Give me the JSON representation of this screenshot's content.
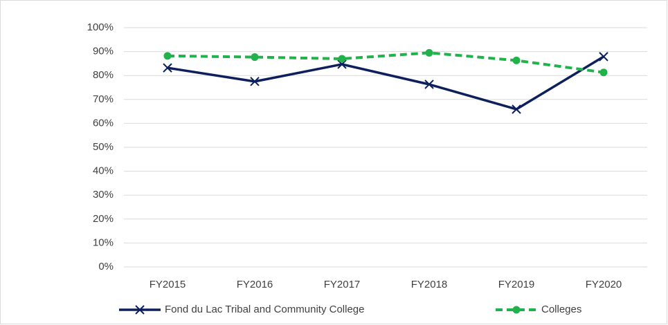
{
  "chart_data": {
    "type": "line",
    "categories": [
      "FY2015",
      "FY2016",
      "FY2017",
      "FY2018",
      "FY2019",
      "FY2020"
    ],
    "series": [
      {
        "name": "Fond du Lac Tribal and Community College",
        "color": "#0d1f5c",
        "marker": "x",
        "dash": false,
        "values": [
          83.2,
          77.5,
          84.7,
          76.3,
          65.9,
          87.9
        ]
      },
      {
        "name": "Colleges",
        "color": "#21b24b",
        "marker": "circle",
        "dash": true,
        "values": [
          88.2,
          87.7,
          87.0,
          89.5,
          86.3,
          81.3
        ]
      }
    ],
    "ylim": [
      0,
      100
    ],
    "yticks": [
      {
        "value": 0,
        "label": "0%"
      },
      {
        "value": 10,
        "label": "10%"
      },
      {
        "value": 20,
        "label": "20%"
      },
      {
        "value": 30,
        "label": "30%"
      },
      {
        "value": 40,
        "label": "40%"
      },
      {
        "value": 50,
        "label": "50%"
      },
      {
        "value": 60,
        "label": "60%"
      },
      {
        "value": 70,
        "label": "70%"
      },
      {
        "value": 80,
        "label": "80%"
      },
      {
        "value": 90,
        "label": "90%"
      },
      {
        "value": 100,
        "label": "100%"
      }
    ],
    "grid": true,
    "legend": "bottom"
  }
}
